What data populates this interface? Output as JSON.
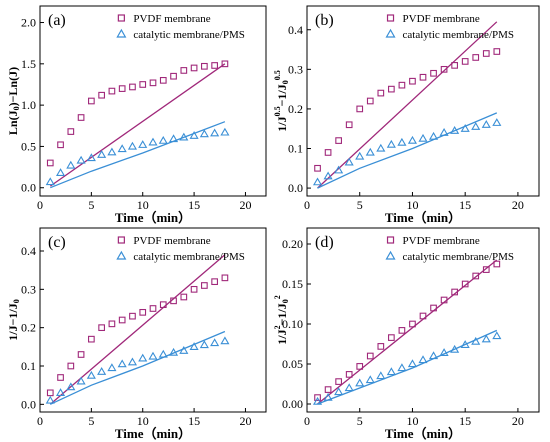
{
  "chart_data": [
    {
      "type": "scatter",
      "panel_label": "(a)",
      "xlabel": "Time（min）",
      "ylabel": "Ln(J0)−Ln(J)",
      "xlim": [
        0,
        22
      ],
      "ylim": [
        -0.1,
        2.2
      ],
      "xticks": [
        0,
        5,
        10,
        15,
        20
      ],
      "yticks": [
        0.0,
        0.5,
        1.0,
        1.5,
        2.0
      ],
      "ytick_labels": [
        "0.0",
        "0.5",
        "1.0",
        "1.5",
        "2.0"
      ],
      "legend": "top-right",
      "grid": false,
      "series": [
        {
          "name": "PVDF membrane",
          "marker": "square",
          "color": "#a0287a",
          "x": [
            1,
            2,
            3,
            4,
            5,
            6,
            7,
            8,
            9,
            10,
            11,
            12,
            13,
            14,
            15,
            16,
            17,
            18
          ],
          "y": [
            0.3,
            0.52,
            0.68,
            0.85,
            1.05,
            1.12,
            1.17,
            1.2,
            1.22,
            1.25,
            1.27,
            1.3,
            1.35,
            1.42,
            1.45,
            1.47,
            1.48,
            1.5
          ],
          "fit": [
            [
              1,
              0.02
            ],
            [
              18,
              1.5
            ]
          ]
        },
        {
          "name": "catalytic membrane/PMS",
          "marker": "triangle",
          "color": "#3a8fd6",
          "x": [
            1,
            2,
            3,
            4,
            5,
            6,
            7,
            8,
            9,
            10,
            11,
            12,
            13,
            14,
            15,
            16,
            17,
            18
          ],
          "y": [
            0.07,
            0.18,
            0.27,
            0.33,
            0.36,
            0.4,
            0.43,
            0.47,
            0.5,
            0.52,
            0.55,
            0.57,
            0.59,
            0.61,
            0.63,
            0.65,
            0.66,
            0.67
          ],
          "fit": [
            [
              1,
              0.0
            ],
            [
              5,
              0.2
            ],
            [
              10,
              0.42
            ],
            [
              18,
              0.8
            ]
          ]
        }
      ]
    },
    {
      "type": "scatter",
      "panel_label": "(b)",
      "xlabel": "Time（min）",
      "ylabel": "1/J^0.5−1/J0^0.5",
      "xlim": [
        0,
        22
      ],
      "ylim": [
        -0.02,
        0.46
      ],
      "xticks": [
        0,
        5,
        10,
        15,
        20
      ],
      "yticks": [
        0.0,
        0.1,
        0.2,
        0.3,
        0.4
      ],
      "ytick_labels": [
        "0.0",
        "0.1",
        "0.2",
        "0.3",
        "0.4"
      ],
      "legend": "top-right",
      "grid": false,
      "series": [
        {
          "name": "PVDF membrane",
          "marker": "square",
          "color": "#a0287a",
          "x": [
            1,
            2,
            3,
            4,
            5,
            6,
            7,
            8,
            9,
            10,
            11,
            12,
            13,
            14,
            15,
            16,
            17,
            18
          ],
          "y": [
            0.05,
            0.09,
            0.12,
            0.16,
            0.2,
            0.22,
            0.24,
            0.25,
            0.26,
            0.27,
            0.28,
            0.29,
            0.3,
            0.31,
            0.32,
            0.33,
            0.34,
            0.345
          ],
          "fit": [
            [
              1,
              0.0
            ],
            [
              18,
              0.42
            ]
          ]
        },
        {
          "name": "catalytic membrane/PMS",
          "marker": "triangle",
          "color": "#3a8fd6",
          "x": [
            1,
            2,
            3,
            4,
            5,
            6,
            7,
            8,
            9,
            10,
            11,
            12,
            13,
            14,
            15,
            16,
            17,
            18
          ],
          "y": [
            0.015,
            0.03,
            0.045,
            0.065,
            0.08,
            0.09,
            0.1,
            0.11,
            0.115,
            0.12,
            0.125,
            0.13,
            0.14,
            0.145,
            0.15,
            0.155,
            0.16,
            0.165
          ],
          "fit": [
            [
              1,
              0.0
            ],
            [
              5,
              0.05
            ],
            [
              10,
              0.1
            ],
            [
              18,
              0.19
            ]
          ]
        }
      ]
    },
    {
      "type": "scatter",
      "panel_label": "(c)",
      "xlabel": "Time（min）",
      "ylabel": "1/J−1/J0",
      "xlim": [
        0,
        22
      ],
      "ylim": [
        -0.02,
        0.46
      ],
      "xticks": [
        0,
        5,
        10,
        15,
        20
      ],
      "yticks": [
        0.0,
        0.1,
        0.2,
        0.3,
        0.4
      ],
      "ytick_labels": [
        "0.0",
        "0.1",
        "0.2",
        "0.3",
        "0.4"
      ],
      "legend": "top-right",
      "grid": false,
      "series": [
        {
          "name": "PVDF membrane",
          "marker": "square",
          "color": "#a0287a",
          "x": [
            1,
            2,
            3,
            4,
            5,
            6,
            7,
            8,
            9,
            10,
            11,
            12,
            13,
            14,
            15,
            16,
            17,
            18
          ],
          "y": [
            0.03,
            0.07,
            0.1,
            0.13,
            0.17,
            0.2,
            0.21,
            0.22,
            0.23,
            0.24,
            0.25,
            0.26,
            0.27,
            0.28,
            0.3,
            0.31,
            0.32,
            0.33
          ],
          "fit": [
            [
              1,
              0.0
            ],
            [
              18,
              0.39
            ]
          ]
        },
        {
          "name": "catalytic membrane/PMS",
          "marker": "triangle",
          "color": "#3a8fd6",
          "x": [
            1,
            2,
            3,
            4,
            5,
            6,
            7,
            8,
            9,
            10,
            11,
            12,
            13,
            14,
            15,
            16,
            17,
            18
          ],
          "y": [
            0.01,
            0.03,
            0.045,
            0.06,
            0.075,
            0.085,
            0.095,
            0.105,
            0.11,
            0.12,
            0.125,
            0.13,
            0.135,
            0.14,
            0.15,
            0.155,
            0.16,
            0.165
          ],
          "fit": [
            [
              1,
              0.0
            ],
            [
              5,
              0.05
            ],
            [
              10,
              0.1
            ],
            [
              18,
              0.19
            ]
          ]
        }
      ]
    },
    {
      "type": "scatter",
      "panel_label": "(d)",
      "xlabel": "Time（min）",
      "ylabel": "1/J^2−1/J0^2",
      "xlim": [
        0,
        22
      ],
      "ylim": [
        -0.01,
        0.22
      ],
      "xticks": [
        0,
        5,
        10,
        15,
        20
      ],
      "yticks": [
        0.0,
        0.05,
        0.1,
        0.15,
        0.2
      ],
      "ytick_labels": [
        "0.00",
        "0.05",
        "0.10",
        "0.15",
        "0.20"
      ],
      "legend": "top-right",
      "grid": false,
      "series": [
        {
          "name": "PVDF membrane",
          "marker": "square",
          "color": "#a0287a",
          "x": [
            1,
            2,
            3,
            4,
            5,
            6,
            7,
            8,
            9,
            10,
            11,
            12,
            13,
            14,
            15,
            16,
            17,
            18
          ],
          "y": [
            0.008,
            0.018,
            0.028,
            0.037,
            0.047,
            0.06,
            0.072,
            0.083,
            0.092,
            0.1,
            0.11,
            0.12,
            0.13,
            0.14,
            0.15,
            0.16,
            0.168,
            0.175
          ],
          "fit": [
            [
              1,
              0.0
            ],
            [
              18,
              0.18
            ]
          ]
        },
        {
          "name": "catalytic membrane/PMS",
          "marker": "triangle",
          "color": "#3a8fd6",
          "x": [
            1,
            2,
            3,
            4,
            5,
            6,
            7,
            8,
            9,
            10,
            11,
            12,
            13,
            14,
            15,
            16,
            17,
            18
          ],
          "y": [
            0.003,
            0.008,
            0.015,
            0.02,
            0.026,
            0.03,
            0.035,
            0.04,
            0.045,
            0.05,
            0.055,
            0.06,
            0.064,
            0.068,
            0.074,
            0.078,
            0.081,
            0.085
          ],
          "fit": [
            [
              1,
              0.0
            ],
            [
              5,
              0.02
            ],
            [
              10,
              0.045
            ],
            [
              18,
              0.092
            ]
          ]
        }
      ]
    }
  ]
}
